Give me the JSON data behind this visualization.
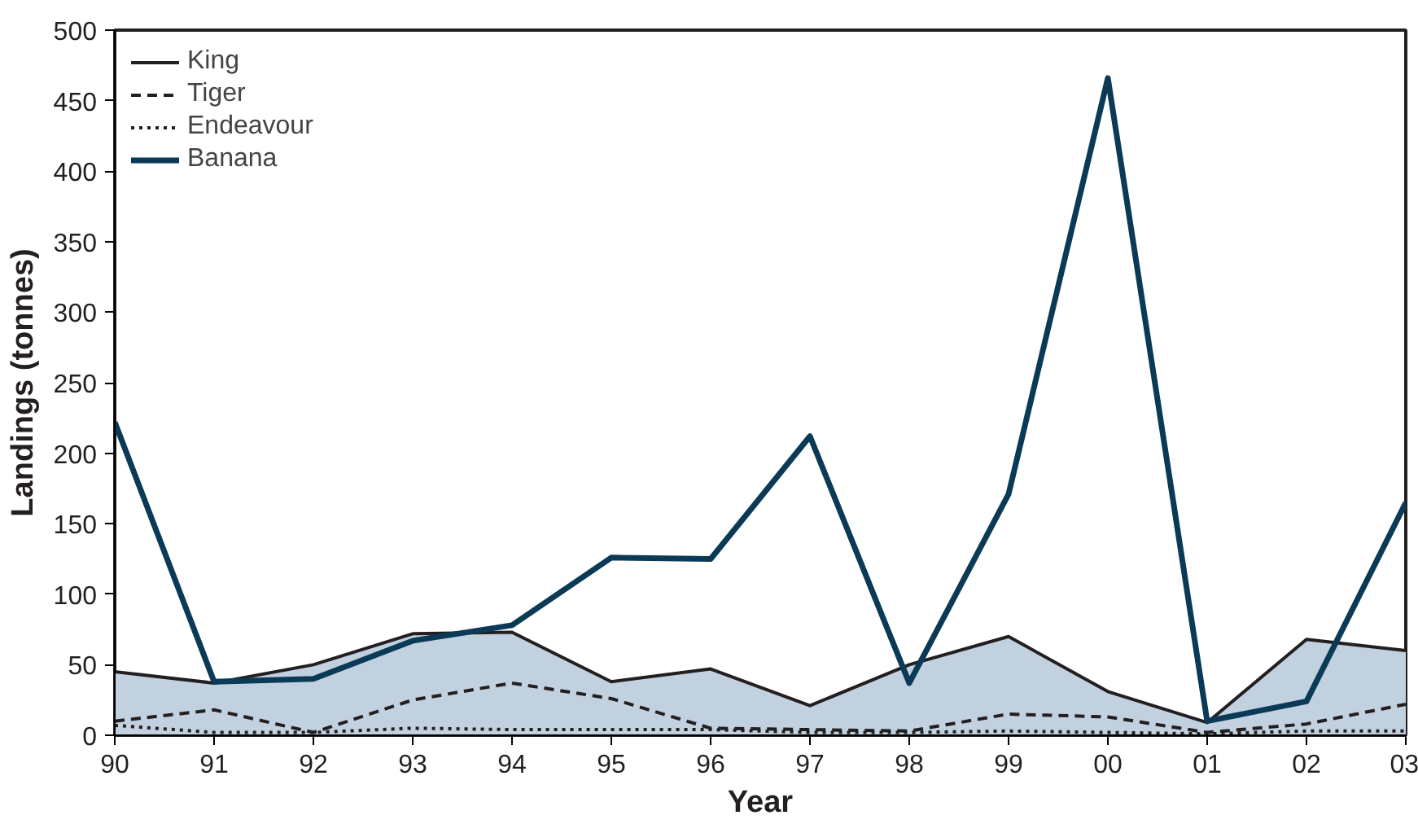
{
  "chart_data": {
    "type": "line",
    "xlabel": "Year",
    "ylabel": "Landings (tonnes)",
    "categories": [
      "90",
      "91",
      "92",
      "93",
      "94",
      "95",
      "96",
      "97",
      "98",
      "99",
      "00",
      "01",
      "02",
      "03"
    ],
    "ylim": [
      0,
      500
    ],
    "yticks": [
      0,
      50,
      100,
      150,
      200,
      250,
      300,
      350,
      400,
      450,
      500
    ],
    "grid": false,
    "legend": "top left",
    "marker": "none",
    "series": [
      {
        "name": "King",
        "type": "area",
        "color": "#c2d1df",
        "line_style": "solid",
        "values": [
          45,
          37,
          50,
          72,
          73,
          38,
          47,
          21,
          50,
          70,
          31,
          9,
          68,
          60
        ]
      },
      {
        "name": "Tiger",
        "color": "#231f20",
        "line_style": "dashed",
        "values": [
          10,
          18,
          2,
          25,
          37,
          26,
          5,
          4,
          3,
          15,
          13,
          2,
          8,
          22
        ]
      },
      {
        "name": "Endeavour",
        "color": "#231f20",
        "line_style": "dotted",
        "values": [
          7,
          2,
          2,
          5,
          4,
          4,
          4,
          2,
          2,
          3,
          2,
          1,
          3,
          3
        ]
      },
      {
        "name": "Banana",
        "color": "#0b3a57",
        "line_style": "solid",
        "values": [
          222,
          38,
          40,
          67,
          78,
          126,
          125,
          212,
          37,
          171,
          466,
          10,
          24,
          165
        ]
      }
    ]
  }
}
